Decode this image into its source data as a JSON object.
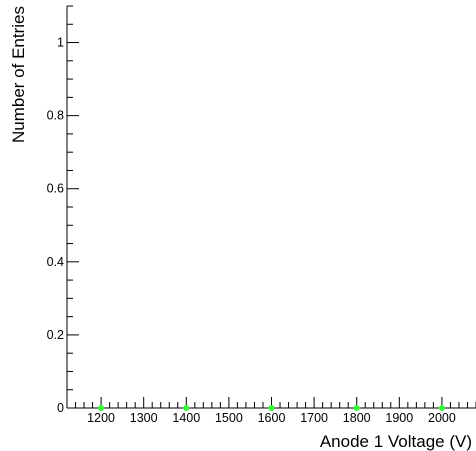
{
  "chart_data": {
    "type": "scatter",
    "xlabel": "Anode 1 Voltage (V)",
    "ylabel": "Number of Entries",
    "xlim": [
      1120,
      2080
    ],
    "ylim": [
      0,
      1.1
    ],
    "x_ticks": [
      1200,
      1300,
      1400,
      1500,
      1600,
      1700,
      1800,
      1900,
      2000
    ],
    "y_ticks": [
      0,
      0.2,
      0.4,
      0.6,
      0.8,
      1
    ],
    "y_tick_labels": [
      "0",
      "0.2",
      "0.4",
      "0.6",
      "0.8",
      "1"
    ],
    "x_minor_step": 20,
    "y_minor_step": 0.05,
    "grid": false,
    "series": [
      {
        "color": "#33ff33",
        "x": [
          1200,
          1400,
          1600,
          1800,
          2000
        ],
        "y": [
          0,
          0,
          0,
          0,
          0
        ]
      }
    ]
  }
}
